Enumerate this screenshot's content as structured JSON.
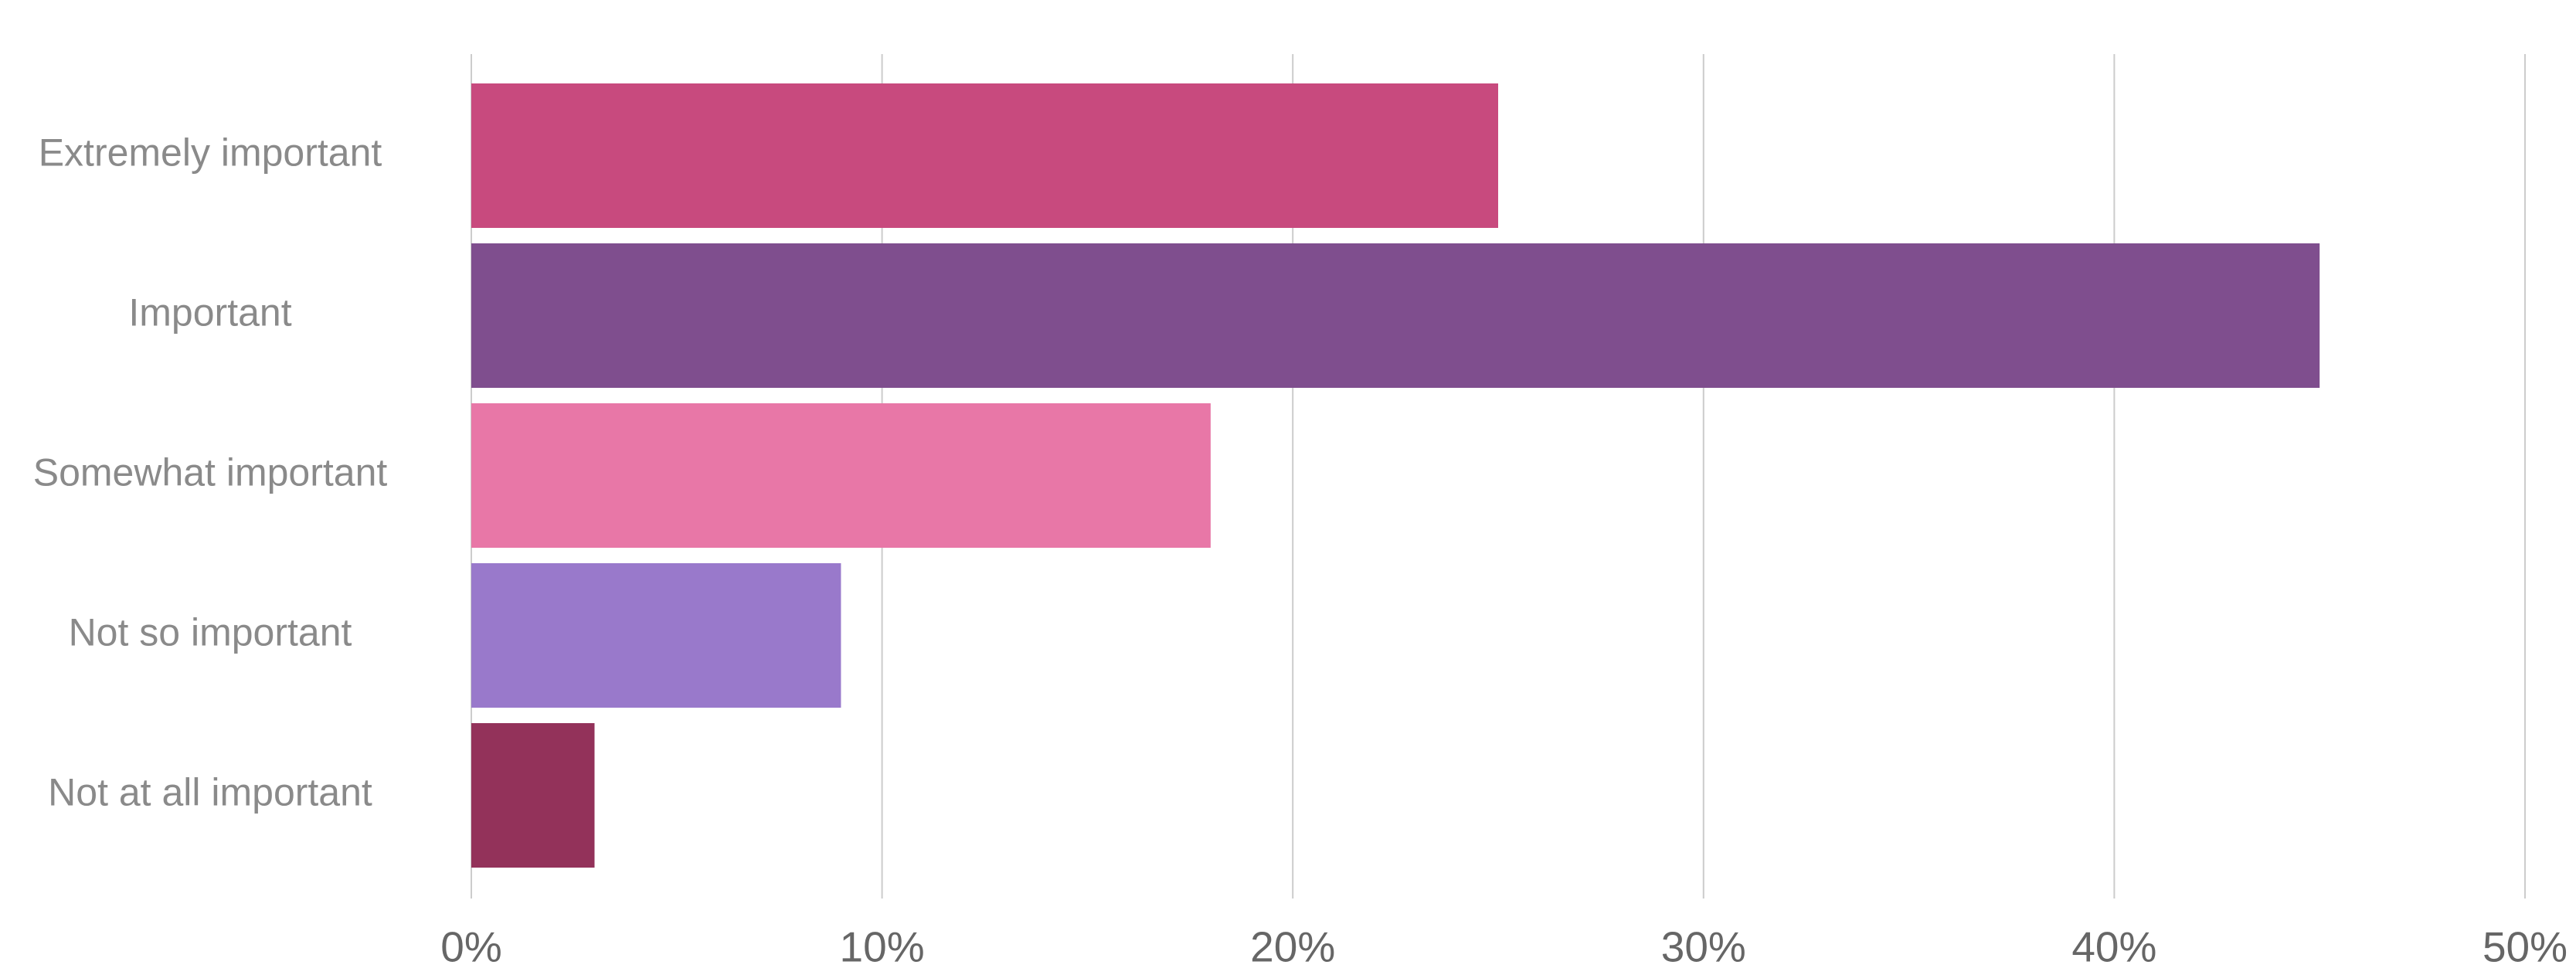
{
  "chart_data": {
    "type": "hbar",
    "categories": [
      "Extremely important",
      "Important",
      "Somewhat important",
      "Not so important",
      "Not at all important"
    ],
    "values": [
      25,
      45,
      18,
      9,
      3
    ],
    "colors": [
      "#c84a7e",
      "#7f4e8e",
      "#e877a7",
      "#9979cb",
      "#93325a"
    ],
    "xlim": [
      0,
      50
    ],
    "xticks": [
      {
        "value": 0,
        "label": "0%"
      },
      {
        "value": 10,
        "label": "10%"
      },
      {
        "value": 20,
        "label": "20%"
      },
      {
        "value": 30,
        "label": "30%"
      },
      {
        "value": 40,
        "label": "40%"
      },
      {
        "value": 50,
        "label": "50%"
      }
    ],
    "grid": true
  }
}
